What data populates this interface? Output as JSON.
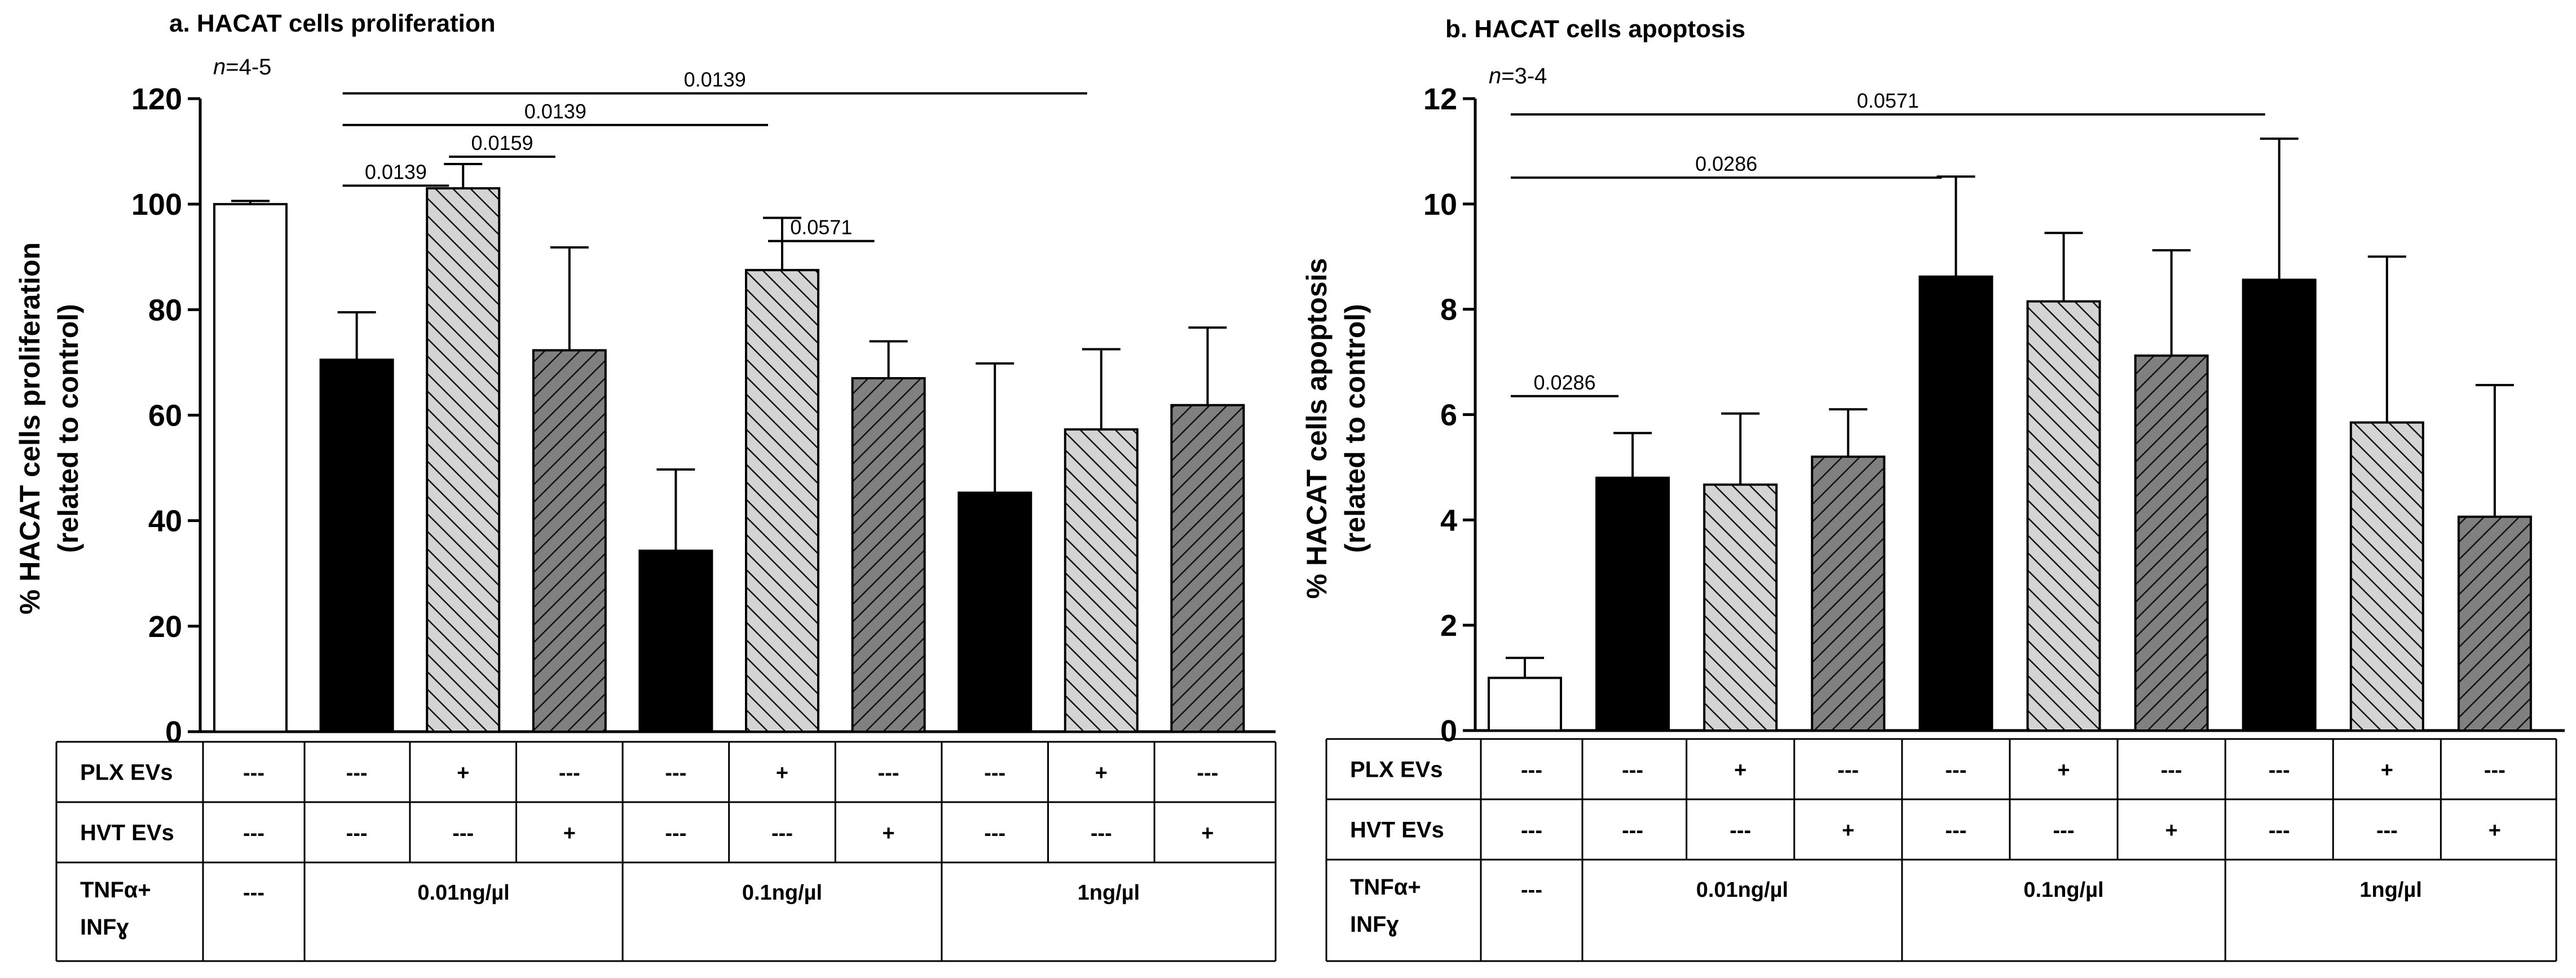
{
  "chart_data": [
    {
      "type": "bar",
      "title": "a. HACAT cells proliferation",
      "n_label": "n=4-5",
      "n_italic": "n",
      "n_rest": "=4-5",
      "ylabel_line1": "% HACAT cells proliferation",
      "ylabel_line2": "(related to control)",
      "ylim": [
        0,
        120
      ],
      "yticks": [
        "0",
        "20",
        "40",
        "60",
        "80",
        "100",
        "120"
      ],
      "values": [
        100,
        70.5,
        103,
        72.3,
        34.3,
        87.5,
        67,
        45.3,
        57.3,
        61.9
      ],
      "errors": [
        0.6,
        9,
        4.6,
        19.5,
        15.4,
        9.9,
        7,
        24.5,
        15.2,
        14.7
      ],
      "fills": [
        "white",
        "black",
        "light-hatch",
        "dark-hatch",
        "black",
        "light-hatch",
        "dark-hatch",
        "black",
        "light-hatch",
        "dark-hatch"
      ],
      "pvalues": [
        {
          "label": "0.0139",
          "from_bar": 1,
          "to_bar": 2,
          "y": 103.5
        },
        {
          "label": "0.0159",
          "from_bar": 2,
          "to_bar": 3,
          "y": 109
        },
        {
          "label": "0.0139",
          "from_bar": 1,
          "to_bar": 5,
          "y": 115
        },
        {
          "label": "0.0571",
          "from_bar": 5,
          "to_bar": 6,
          "y": 93
        },
        {
          "label": "0.0139",
          "from_bar": 1,
          "to_bar": 8,
          "y": 121
        }
      ],
      "table": {
        "rows": [
          {
            "label": "PLX EVs",
            "cells": [
              "---",
              "---",
              "+",
              "---",
              "---",
              "+",
              "---",
              "---",
              "+",
              "---"
            ]
          },
          {
            "label": "HVT EVs",
            "cells": [
              "---",
              "---",
              "---",
              "+",
              "---",
              "---",
              "+",
              "---",
              "---",
              "+"
            ]
          }
        ],
        "treatment_label_line1": "TNFα+",
        "treatment_label_line2": "INFɣ",
        "treatment_groups": [
          "---",
          "0.01ng/µl",
          "0.1ng/µl",
          "1ng/µl"
        ]
      }
    },
    {
      "type": "bar",
      "title": "b. HACAT cells apoptosis",
      "n_label": "n=3-4",
      "n_italic": "n",
      "n_rest": "=3-4",
      "ylabel_line1": "% HACAT cells apoptosis",
      "ylabel_line2": "(related to control)",
      "ylim": [
        0,
        12
      ],
      "yticks": [
        "0",
        "2",
        "4",
        "6",
        "8",
        "10",
        "12"
      ],
      "values": [
        1.0,
        4.8,
        4.67,
        5.2,
        8.62,
        8.15,
        7.12,
        8.56,
        5.85,
        4.06
      ],
      "errors": [
        0.38,
        0.85,
        1.35,
        0.9,
        1.9,
        1.3,
        2.0,
        2.68,
        3.15,
        2.5
      ],
      "fills": [
        "white",
        "black",
        "light-hatch",
        "dark-hatch",
        "black",
        "light-hatch",
        "dark-hatch",
        "black",
        "light-hatch",
        "dark-hatch"
      ],
      "pvalues": [
        {
          "label": "0.0286",
          "from_bar": 0,
          "to_bar": 1,
          "y": 6.35
        },
        {
          "label": "0.0286",
          "from_bar": 0,
          "to_bar": 4,
          "y": 10.5
        },
        {
          "label": "0.0571",
          "from_bar": 0,
          "to_bar": 7,
          "y": 11.7
        }
      ],
      "table": {
        "rows": [
          {
            "label": "PLX EVs",
            "cells": [
              "---",
              "---",
              "+",
              "---",
              "---",
              "+",
              "---",
              "---",
              "+",
              "---"
            ]
          },
          {
            "label": "HVT EVs",
            "cells": [
              "---",
              "---",
              "---",
              "+",
              "---",
              "---",
              "+",
              "---",
              "---",
              "+"
            ]
          }
        ],
        "treatment_label_line1": "TNFα+",
        "treatment_label_line2": "INFɣ",
        "treatment_groups": [
          "---",
          "0.01ng/µl",
          "0.1ng/µl",
          "1ng/µl"
        ]
      }
    }
  ]
}
